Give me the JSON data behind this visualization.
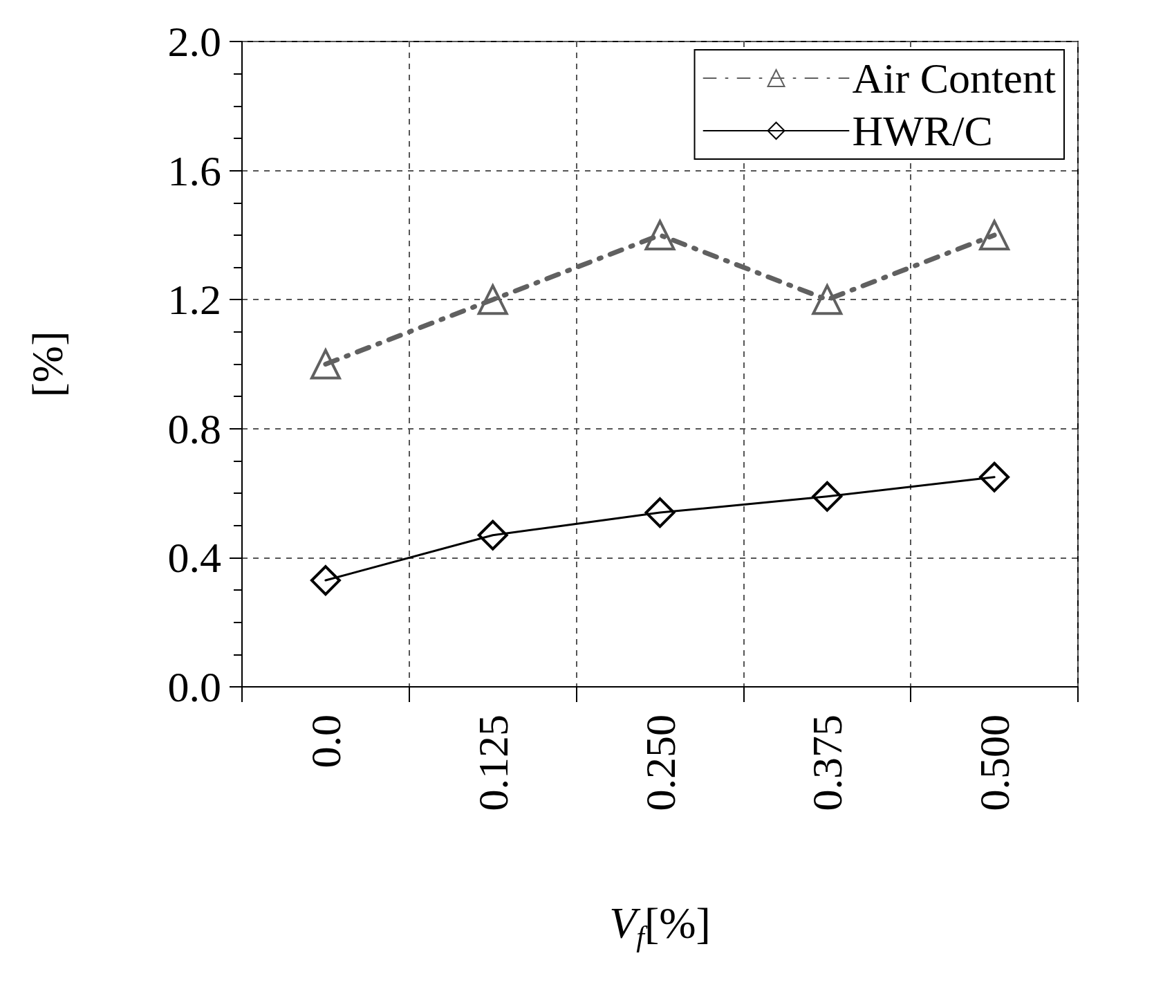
{
  "chart_data": {
    "type": "line",
    "xlabel": "V$_{f}$[%]",
    "ylabel": "[%]",
    "categories": [
      "0.0",
      "0.125",
      "0.250",
      "0.375",
      "0.500"
    ],
    "series": [
      {
        "name": "Air Content",
        "color": "#606060",
        "values": [
          1.0,
          1.2,
          1.4,
          1.2,
          1.4
        ],
        "marker": "triangle",
        "line_style": "dashed"
      },
      {
        "name": "HWR/C",
        "color": "#000000",
        "values": [
          0.33,
          0.47,
          0.54,
          0.59,
          0.65
        ],
        "marker": "diamond",
        "line_style": "solid"
      }
    ],
    "ylim": [
      0,
      2.0
    ],
    "yticks": [
      {
        "value": 0,
        "label": "0.0"
      },
      {
        "value": 0.4,
        "label": "0.4"
      },
      {
        "value": 0.8,
        "label": "0.8"
      },
      {
        "value": 1.2,
        "label": "1.2"
      },
      {
        "value": 1.6,
        "label": "1.6"
      },
      {
        "value": 2.0,
        "label": "2.0"
      }
    ],
    "grid": true,
    "legend": "top right"
  }
}
